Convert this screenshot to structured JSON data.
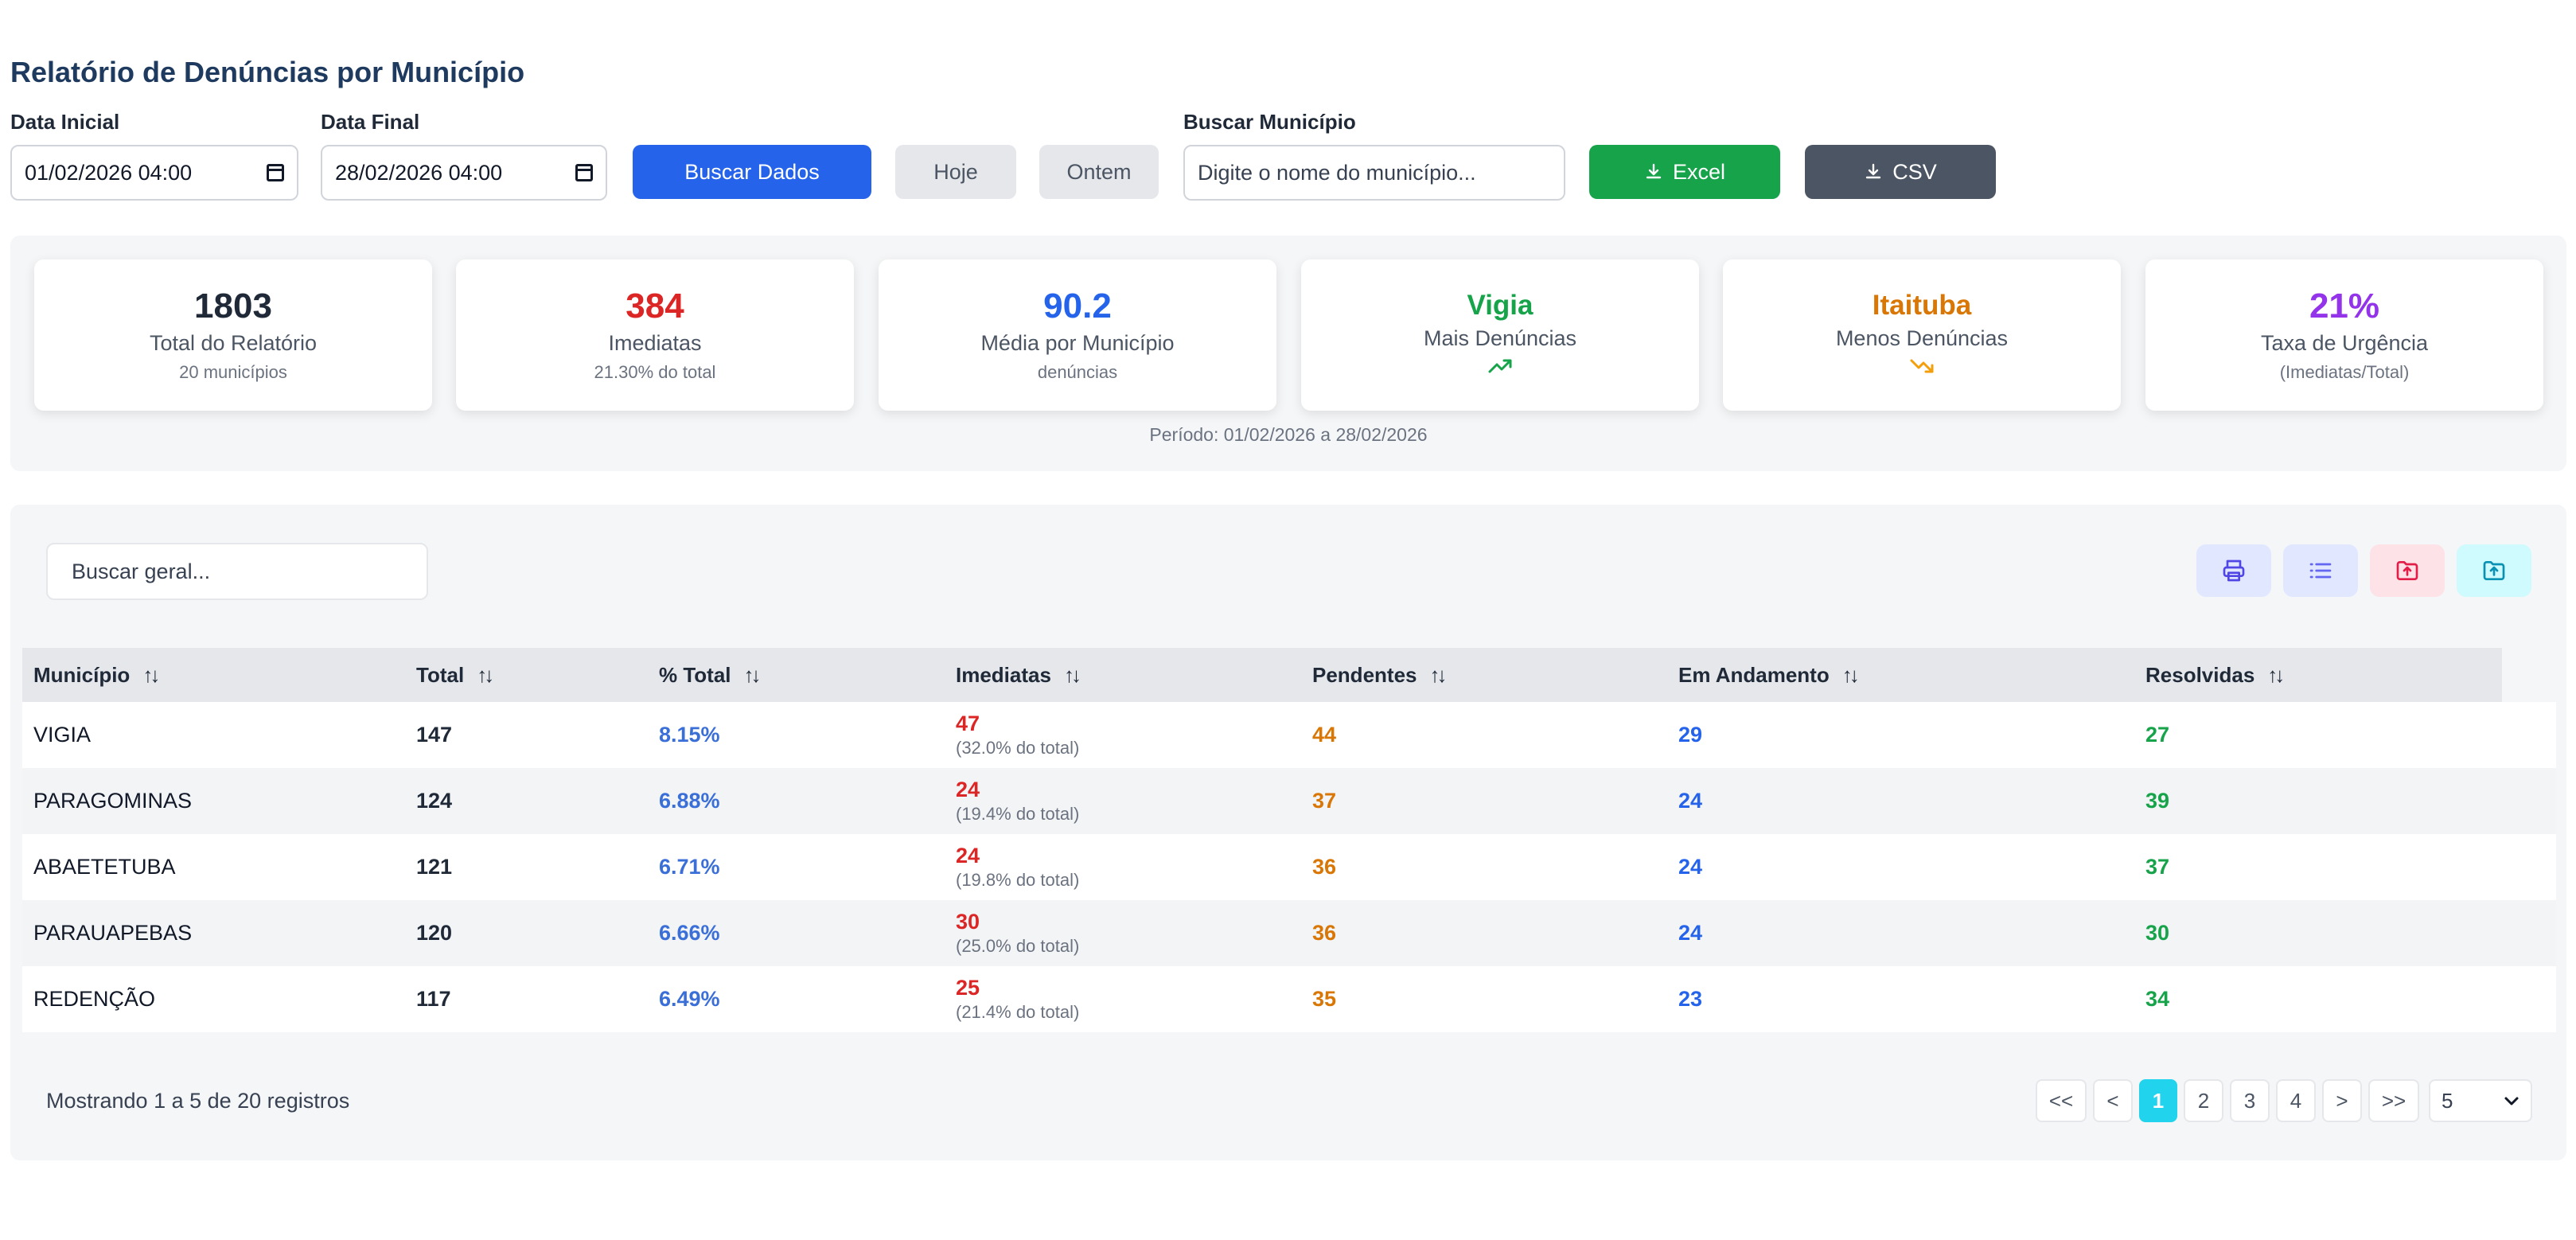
{
  "header": {
    "title": "Relatório de Denúncias por Município"
  },
  "filters": {
    "start_label": "Data Inicial",
    "start_value": "01/02/2026 04:00",
    "end_label": "Data Final",
    "end_value": "28/02/2026 04:00",
    "search_button": "Buscar Dados",
    "today_button": "Hoje",
    "yesterday_button": "Ontem",
    "municipio_label": "Buscar Município",
    "municipio_placeholder": "Digite o nome do município...",
    "excel_button": "Excel",
    "csv_button": "CSV"
  },
  "stats": {
    "total": {
      "value": "1803",
      "label": "Total do Relatório",
      "sub": "20 municípios",
      "color": "#1f2937"
    },
    "imediatas": {
      "value": "384",
      "label": "Imediatas",
      "sub": "21.30% do total",
      "color": "#dc2626"
    },
    "media": {
      "value": "90.2",
      "label": "Média por Município",
      "sub": "denúncias",
      "color": "#2563eb"
    },
    "mais": {
      "value": "Vigia",
      "label": "Mais Denúncias",
      "color": "#16a34a"
    },
    "menos": {
      "value": "Itaituba",
      "label": "Menos Denúncias",
      "color": "#d97706"
    },
    "taxa": {
      "value": "21%",
      "label": "Taxa de Urgência",
      "sub": "(Imediatas/Total)",
      "color": "#9333ea"
    },
    "period": "Período: 01/02/2026 a 28/02/2026"
  },
  "table": {
    "search_placeholder": "Buscar geral...",
    "columns": [
      "Município",
      "Total",
      "% Total",
      "Imediatas",
      "Pendentes",
      "Em Andamento",
      "Resolvidas"
    ],
    "rows": [
      {
        "municipio": "VIGIA",
        "total": "147",
        "pct": "8.15%",
        "imediatas": "47",
        "imediatas_sub": "(32.0% do total)",
        "pendentes": "44",
        "andamento": "29",
        "resolvidas": "27"
      },
      {
        "municipio": "PARAGOMINAS",
        "total": "124",
        "pct": "6.88%",
        "imediatas": "24",
        "imediatas_sub": "(19.4% do total)",
        "pendentes": "37",
        "andamento": "24",
        "resolvidas": "39"
      },
      {
        "municipio": "ABAETETUBA",
        "total": "121",
        "pct": "6.71%",
        "imediatas": "24",
        "imediatas_sub": "(19.8% do total)",
        "pendentes": "36",
        "andamento": "24",
        "resolvidas": "37"
      },
      {
        "municipio": "PARAUAPEBAS",
        "total": "120",
        "pct": "6.66%",
        "imediatas": "30",
        "imediatas_sub": "(25.0% do total)",
        "pendentes": "36",
        "andamento": "24",
        "resolvidas": "30"
      },
      {
        "municipio": "REDENÇÃO",
        "total": "117",
        "pct": "6.49%",
        "imediatas": "25",
        "imediatas_sub": "(21.4% do total)",
        "pendentes": "35",
        "andamento": "23",
        "resolvidas": "34"
      }
    ]
  },
  "pagination": {
    "showing": "Mostrando 1 a 5 de 20 registros",
    "first": "<<",
    "prev": "<",
    "pages": [
      "1",
      "2",
      "3",
      "4"
    ],
    "active_page": "1",
    "next": ">",
    "last": ">>",
    "page_size": "5"
  }
}
